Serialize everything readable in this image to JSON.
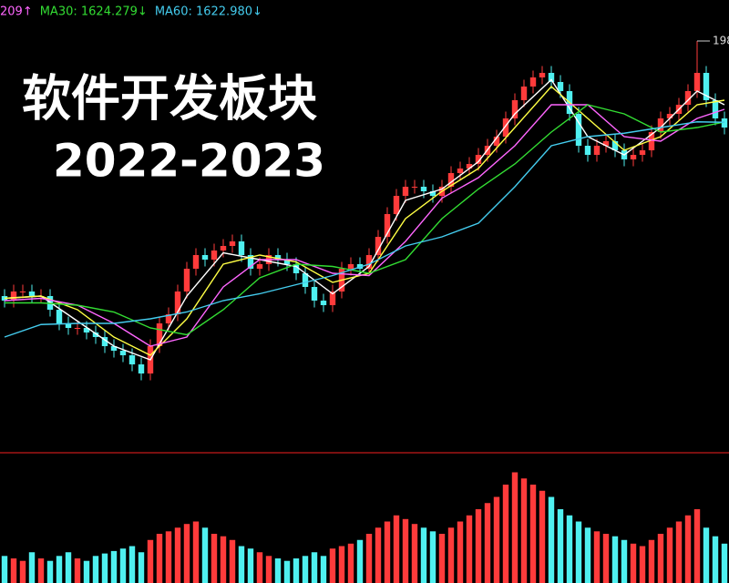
{
  "chart_data": {
    "type": "candlestick",
    "title": "软件开发板块",
    "subtitle": "2022-2023",
    "ylim": [
      400,
      2160
    ],
    "up_color": "#ff3b3b",
    "down_color": "#4ff0f0",
    "open": [
      860,
      840,
      880,
      880,
      860,
      860,
      800,
      740,
      720,
      720,
      700,
      680,
      640,
      620,
      600,
      560,
      520,
      640,
      740,
      780,
      880,
      980,
      1040,
      1020,
      1060,
      1080,
      1100,
      1040,
      980,
      1000,
      1040,
      1020,
      1000,
      960,
      900,
      840,
      820,
      880,
      980,
      1000,
      980,
      1040,
      1120,
      1220,
      1300,
      1340,
      1340,
      1320,
      1300,
      1340,
      1400,
      1420,
      1440,
      1480,
      1520,
      1560,
      1640,
      1720,
      1780,
      1820,
      1840,
      1800,
      1760,
      1660,
      1520,
      1480,
      1520,
      1540,
      1500,
      1460,
      1480,
      1500,
      1580,
      1640,
      1660,
      1700,
      1760,
      1840,
      1720,
      1640
    ],
    "high": [
      890,
      910,
      910,
      910,
      890,
      890,
      830,
      770,
      750,
      750,
      730,
      710,
      670,
      650,
      630,
      590,
      670,
      770,
      810,
      910,
      1010,
      1070,
      1070,
      1090,
      1110,
      1130,
      1130,
      1070,
      1030,
      1070,
      1070,
      1050,
      1030,
      990,
      930,
      870,
      910,
      1010,
      1030,
      1030,
      1070,
      1150,
      1250,
      1330,
      1370,
      1370,
      1370,
      1350,
      1370,
      1430,
      1450,
      1470,
      1510,
      1550,
      1590,
      1670,
      1750,
      1810,
      1850,
      1870,
      1870,
      1830,
      1790,
      1690,
      1550,
      1550,
      1570,
      1570,
      1530,
      1510,
      1530,
      1610,
      1670,
      1690,
      1730,
      1790,
      1980,
      1870,
      1750,
      1670
    ],
    "low": [
      810,
      810,
      850,
      830,
      830,
      770,
      710,
      690,
      690,
      670,
      650,
      610,
      590,
      570,
      530,
      490,
      490,
      610,
      710,
      750,
      850,
      950,
      990,
      990,
      1030,
      1050,
      1010,
      950,
      950,
      970,
      990,
      970,
      930,
      870,
      810,
      790,
      790,
      850,
      950,
      950,
      950,
      1010,
      1090,
      1190,
      1270,
      1310,
      1290,
      1270,
      1270,
      1310,
      1370,
      1390,
      1410,
      1450,
      1490,
      1530,
      1610,
      1690,
      1750,
      1790,
      1770,
      1730,
      1630,
      1490,
      1450,
      1450,
      1490,
      1470,
      1430,
      1430,
      1450,
      1470,
      1550,
      1610,
      1630,
      1670,
      1730,
      1690,
      1610,
      1570
    ],
    "close": [
      840,
      880,
      880,
      860,
      860,
      800,
      740,
      720,
      720,
      700,
      680,
      640,
      620,
      600,
      560,
      520,
      640,
      740,
      780,
      880,
      980,
      1040,
      1020,
      1060,
      1080,
      1100,
      1040,
      980,
      1000,
      1040,
      1020,
      1000,
      960,
      900,
      840,
      820,
      880,
      980,
      1000,
      980,
      1040,
      1120,
      1220,
      1300,
      1340,
      1340,
      1320,
      1300,
      1340,
      1400,
      1420,
      1440,
      1480,
      1520,
      1560,
      1640,
      1720,
      1780,
      1820,
      1840,
      1800,
      1760,
      1660,
      1520,
      1480,
      1520,
      1540,
      1500,
      1460,
      1480,
      1500,
      1580,
      1640,
      1660,
      1700,
      1760,
      1840,
      1720,
      1640,
      1600
    ],
    "volume": [
      22,
      20,
      18,
      25,
      20,
      18,
      22,
      25,
      20,
      18,
      22,
      24,
      26,
      28,
      30,
      25,
      35,
      40,
      42,
      45,
      48,
      50,
      45,
      40,
      38,
      35,
      30,
      28,
      25,
      22,
      20,
      18,
      20,
      22,
      25,
      22,
      28,
      30,
      32,
      35,
      40,
      45,
      50,
      55,
      52,
      48,
      45,
      42,
      40,
      45,
      50,
      55,
      60,
      65,
      70,
      80,
      90,
      85,
      80,
      75,
      70,
      60,
      55,
      50,
      45,
      42,
      40,
      38,
      35,
      32,
      30,
      35,
      40,
      45,
      50,
      55,
      60,
      45,
      38,
      32
    ],
    "volume_ylim": [
      0,
      100
    ],
    "ma_x": [
      0,
      4,
      8,
      12,
      16,
      20,
      24,
      28,
      32,
      36,
      40,
      44,
      48,
      52,
      56,
      60,
      64,
      68,
      72,
      76,
      79
    ],
    "ma": [
      {
        "color": "#ffffff",
        "values": [
          850,
          860,
          750,
          640,
          580,
          860,
          1050,
          1020,
          990,
          870,
          990,
          1280,
          1330,
          1450,
          1660,
          1810,
          1560,
          1480,
          1600,
          1760,
          1700
        ]
      },
      {
        "color": "#ffff44",
        "values": [
          850,
          860,
          800,
          680,
          600,
          760,
          1000,
          1040,
          1010,
          920,
          960,
          1200,
          1320,
          1420,
          1600,
          1780,
          1640,
          1500,
          1560,
          1700,
          1720
        ]
      },
      {
        "label": "209↑",
        "color": "#ff66ff",
        "values": [
          840,
          850,
          820,
          740,
          640,
          680,
          900,
          1020,
          1020,
          960,
          950,
          1100,
          1290,
          1380,
          1520,
          1700,
          1700,
          1560,
          1540,
          1640,
          1680
        ]
      },
      {
        "label": "MA30: 1624.279↓",
        "color": "#33dd33",
        "values": [
          830,
          830,
          820,
          790,
          720,
          690,
          800,
          940,
          1000,
          990,
          960,
          1020,
          1200,
          1330,
          1440,
          1580,
          1700,
          1660,
          1580,
          1600,
          1624.279
        ]
      },
      {
        "label": "MA60: 1622.980↓",
        "color": "#44ccee",
        "values": [
          680,
          735,
          740,
          740,
          760,
          790,
          840,
          870,
          910,
          950,
          1000,
          1080,
          1120,
          1180,
          1340,
          1520,
          1560,
          1575,
          1600,
          1625,
          1622.98
        ]
      }
    ]
  }
}
